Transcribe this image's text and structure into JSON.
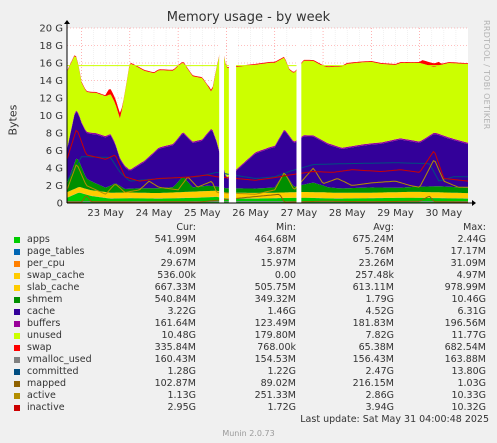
{
  "chart_data": {
    "type": "area",
    "title": "Memory usage - by week",
    "ylabel": "Bytes",
    "ylim": [
      0,
      20
    ],
    "y_unit": "G",
    "yticks": [
      "0",
      "2 G",
      "4 G",
      "6 G",
      "8 G",
      "10 G",
      "12 G",
      "14 G",
      "16 G",
      "18 G",
      "20 G"
    ],
    "xlim": [
      22.7,
      31.0
    ],
    "xticks": [
      {
        "label": "23 May",
        "day": 23
      },
      {
        "label": "24 May",
        "day": 24
      },
      {
        "label": "25 May",
        "day": 25
      },
      {
        "label": "26 May",
        "day": 26
      },
      {
        "label": "27 May",
        "day": 27
      },
      {
        "label": "28 May",
        "day": 28
      },
      {
        "label": "29 May",
        "day": 29
      },
      {
        "label": "30 May",
        "day": 30
      }
    ],
    "grid": true,
    "gaps": [
      [
        25.85,
        25.95
      ],
      [
        26.05,
        26.2
      ],
      [
        27.45,
        27.55
      ]
    ],
    "total_memory_g": 15.7,
    "series": [
      {
        "name": "apps",
        "color": "#00cc00",
        "points": [
          [
            22.7,
            0.6
          ],
          [
            22.95,
            1.2
          ],
          [
            23.2,
            0.8
          ],
          [
            23.6,
            0.5
          ],
          [
            24.0,
            0.55
          ],
          [
            24.6,
            0.5
          ],
          [
            25.4,
            0.6
          ],
          [
            25.8,
            0.7
          ],
          [
            26.0,
            0.5
          ],
          [
            26.6,
            0.5
          ],
          [
            27.0,
            0.55
          ],
          [
            27.6,
            0.6
          ],
          [
            28.3,
            0.5
          ],
          [
            29.0,
            0.55
          ],
          [
            29.8,
            0.6
          ],
          [
            30.5,
            0.55
          ],
          [
            31.0,
            0.5
          ]
        ]
      },
      {
        "name": "page_tables",
        "color": "#0066b3",
        "points": [
          [
            22.7,
            0.01
          ],
          [
            31.0,
            0.01
          ]
        ]
      },
      {
        "name": "per_cpu",
        "color": "#ff8000",
        "points": [
          [
            22.7,
            0.02
          ],
          [
            31.0,
            0.02
          ]
        ]
      },
      {
        "name": "slab_cache",
        "color": "#ffcc00",
        "points": [
          [
            22.7,
            0.6
          ],
          [
            23.5,
            0.65
          ],
          [
            24.5,
            0.6
          ],
          [
            25.5,
            0.7
          ],
          [
            26.0,
            0.65
          ],
          [
            27.0,
            0.6
          ],
          [
            28.0,
            0.65
          ],
          [
            29.0,
            0.6
          ],
          [
            30.0,
            0.65
          ],
          [
            31.0,
            0.6
          ]
        ]
      },
      {
        "name": "shmem",
        "color": "#008f00",
        "points": [
          [
            22.7,
            1.0
          ],
          [
            22.9,
            3.5
          ],
          [
            23.1,
            1.2
          ],
          [
            23.5,
            0.5
          ],
          [
            23.7,
            1.1
          ],
          [
            23.9,
            0.4
          ],
          [
            24.2,
            0.5
          ],
          [
            24.9,
            0.6
          ],
          [
            25.1,
            1.8
          ],
          [
            25.3,
            0.5
          ],
          [
            25.6,
            0.6
          ],
          [
            25.8,
            0.5
          ],
          [
            26.6,
            0.5
          ],
          [
            27.0,
            0.6
          ],
          [
            27.2,
            2.3
          ],
          [
            27.4,
            0.6
          ],
          [
            27.8,
            1.1
          ],
          [
            28.1,
            0.6
          ],
          [
            28.4,
            0.5
          ],
          [
            29.0,
            0.6
          ],
          [
            29.6,
            0.5
          ],
          [
            30.0,
            0.6
          ],
          [
            30.4,
            0.7
          ],
          [
            31.0,
            0.6
          ]
        ]
      },
      {
        "name": "cache",
        "color": "#330099",
        "points": [
          [
            22.7,
            3.8
          ],
          [
            22.85,
            5.5
          ],
          [
            23.0,
            5.0
          ],
          [
            23.3,
            5.6
          ],
          [
            23.6,
            5.8
          ],
          [
            23.8,
            3.0
          ],
          [
            24.0,
            2.0
          ],
          [
            24.3,
            3.0
          ],
          [
            24.6,
            4.5
          ],
          [
            24.9,
            4.8
          ],
          [
            25.2,
            5.0
          ],
          [
            25.5,
            5.2
          ],
          [
            25.7,
            6.5
          ],
          [
            25.8,
            5.0
          ],
          [
            26.0,
            1.0
          ],
          [
            26.6,
            4.0
          ],
          [
            26.9,
            4.5
          ],
          [
            27.2,
            4.8
          ],
          [
            27.4,
            5.0
          ],
          [
            27.6,
            5.5
          ],
          [
            28.0,
            5.0
          ],
          [
            28.4,
            4.5
          ],
          [
            28.8,
            4.8
          ],
          [
            29.2,
            5.0
          ],
          [
            29.6,
            5.5
          ],
          [
            30.0,
            5.0
          ],
          [
            30.3,
            6.0
          ],
          [
            30.6,
            5.5
          ],
          [
            31.0,
            5.0
          ]
        ]
      },
      {
        "name": "buffers",
        "color": "#990099",
        "points": [
          [
            22.7,
            0.15
          ],
          [
            31.0,
            0.15
          ]
        ]
      },
      {
        "name": "unused",
        "color": "#ccff00",
        "points": [
          [
            22.7,
            8.8
          ],
          [
            23.0,
            4.5
          ],
          [
            23.3,
            4.6
          ],
          [
            23.8,
            4.5
          ],
          [
            24.0,
            12.2
          ],
          [
            24.5,
            9.0
          ],
          [
            25.0,
            8.2
          ],
          [
            25.5,
            7.0
          ],
          [
            25.7,
            4.0
          ],
          [
            25.9,
            13.0
          ],
          [
            26.6,
            10.0
          ],
          [
            27.0,
            9.5
          ],
          [
            27.3,
            7.5
          ],
          [
            27.6,
            8.5
          ],
          [
            28.0,
            8.5
          ],
          [
            28.5,
            9.5
          ],
          [
            29.0,
            9.3
          ],
          [
            29.5,
            8.5
          ],
          [
            30.0,
            9.0
          ],
          [
            30.3,
            7.5
          ],
          [
            30.6,
            8.5
          ],
          [
            31.0,
            9.0
          ]
        ]
      },
      {
        "name": "swap",
        "color": "#ff0000",
        "points": [
          [
            22.7,
            0.1
          ],
          [
            23.5,
            0.1
          ],
          [
            23.55,
            0.6
          ],
          [
            23.8,
            0.6
          ],
          [
            23.85,
            0.1
          ],
          [
            25.6,
            0.1
          ],
          [
            25.65,
            0.2
          ],
          [
            25.8,
            0.1
          ],
          [
            30.0,
            0.1
          ],
          [
            30.05,
            0.4
          ],
          [
            30.4,
            0.4
          ],
          [
            30.45,
            0.1
          ],
          [
            31.0,
            0.1
          ]
        ]
      },
      {
        "name": "vmalloc_used",
        "color": "#808080",
        "points": [
          [
            22.7,
            0.16
          ],
          [
            31.0,
            0.16
          ]
        ]
      },
      {
        "name": "committed",
        "color": "#004d80",
        "points": [
          [
            22.7,
            2.5
          ],
          [
            23.0,
            5.3
          ],
          [
            23.6,
            5.2
          ],
          [
            23.8,
            3.5
          ],
          [
            24.0,
            2.5
          ],
          [
            24.4,
            2.7
          ],
          [
            25.0,
            2.9
          ],
          [
            25.4,
            3.0
          ],
          [
            25.8,
            3.5
          ],
          [
            26.6,
            2.8
          ],
          [
            27.0,
            3.0
          ],
          [
            27.3,
            3.6
          ],
          [
            27.8,
            4.4
          ],
          [
            28.5,
            4.5
          ],
          [
            29.5,
            4.6
          ],
          [
            30.2,
            4.5
          ],
          [
            30.4,
            2.5
          ],
          [
            30.7,
            3.0
          ],
          [
            31.0,
            3.0
          ]
        ]
      },
      {
        "name": "mapped",
        "color": "#8f6200",
        "points": [
          [
            22.7,
            0.1
          ],
          [
            23.0,
            0.1
          ],
          [
            23.1,
            0.9
          ],
          [
            23.2,
            0.15
          ],
          [
            24.2,
            0.1
          ],
          [
            25.0,
            0.15
          ],
          [
            25.4,
            0.1
          ],
          [
            27.1,
            1.0
          ],
          [
            27.2,
            0.1
          ],
          [
            28.0,
            0.2
          ],
          [
            29.0,
            0.15
          ],
          [
            30.0,
            0.2
          ],
          [
            30.2,
            0.8
          ],
          [
            30.3,
            0.15
          ],
          [
            31.0,
            0.1
          ]
        ]
      },
      {
        "name": "active",
        "color": "#b38f00",
        "points": [
          [
            22.7,
            1.5
          ],
          [
            22.9,
            4.5
          ],
          [
            23.1,
            2.0
          ],
          [
            23.5,
            1.0
          ],
          [
            23.7,
            2.2
          ],
          [
            23.9,
            1.2
          ],
          [
            24.2,
            1.5
          ],
          [
            24.4,
            2.5
          ],
          [
            24.6,
            1.8
          ],
          [
            25.0,
            1.5
          ],
          [
            25.2,
            3.0
          ],
          [
            25.4,
            1.8
          ],
          [
            25.7,
            2.5
          ],
          [
            25.8,
            1.2
          ],
          [
            26.6,
            1.0
          ],
          [
            27.0,
            1.5
          ],
          [
            27.2,
            3.5
          ],
          [
            27.4,
            1.5
          ],
          [
            27.8,
            4.0
          ],
          [
            28.0,
            2.2
          ],
          [
            28.3,
            2.8
          ],
          [
            28.6,
            2.0
          ],
          [
            29.0,
            2.3
          ],
          [
            29.5,
            2.5
          ],
          [
            29.8,
            2.0
          ],
          [
            30.0,
            1.8
          ],
          [
            30.3,
            5.0
          ],
          [
            30.5,
            2.5
          ],
          [
            30.8,
            1.8
          ],
          [
            31.0,
            1.8
          ]
        ]
      },
      {
        "name": "inactive",
        "color": "#cc0000",
        "points": [
          [
            22.7,
            5.0
          ],
          [
            22.9,
            8.5
          ],
          [
            23.1,
            5.5
          ],
          [
            23.5,
            5.0
          ],
          [
            23.7,
            5.5
          ],
          [
            23.9,
            3.0
          ],
          [
            24.2,
            2.5
          ],
          [
            24.6,
            2.8
          ],
          [
            25.0,
            2.9
          ],
          [
            25.3,
            3.0
          ],
          [
            25.6,
            3.2
          ],
          [
            25.8,
            3.0
          ],
          [
            26.6,
            2.6
          ],
          [
            27.0,
            2.9
          ],
          [
            27.3,
            3.2
          ],
          [
            27.8,
            3.6
          ],
          [
            28.2,
            3.5
          ],
          [
            28.6,
            3.8
          ],
          [
            29.2,
            3.6
          ],
          [
            29.6,
            3.8
          ],
          [
            30.0,
            3.5
          ],
          [
            30.3,
            6.0
          ],
          [
            30.5,
            2.8
          ],
          [
            31.0,
            2.5
          ]
        ]
      }
    ]
  },
  "legend": {
    "headers": {
      "cur": "Cur:",
      "min": "Min:",
      "avg": "Avg:",
      "max": "Max:"
    },
    "rows": [
      {
        "name": "apps",
        "color": "#00cc00",
        "cur": "541.99M",
        "min": "464.68M",
        "avg": "675.24M",
        "max": "2.44G"
      },
      {
        "name": "page_tables",
        "color": "#0066b3",
        "cur": "4.09M",
        "min": "3.87M",
        "avg": "5.76M",
        "max": "17.17M"
      },
      {
        "name": "per_cpu",
        "color": "#ff8000",
        "cur": "29.67M",
        "min": "15.97M",
        "avg": "23.26M",
        "max": "31.09M"
      },
      {
        "name": "swap_cache",
        "color": "#ffcc00",
        "cur": "536.00k",
        "min": "0.00",
        "avg": "257.48k",
        "max": "4.97M"
      },
      {
        "name": "slab_cache",
        "color": "#ffcc00",
        "cur": "667.33M",
        "min": "505.75M",
        "avg": "613.11M",
        "max": "978.99M"
      },
      {
        "name": "shmem",
        "color": "#008f00",
        "cur": "540.84M",
        "min": "349.32M",
        "avg": "1.79G",
        "max": "10.46G"
      },
      {
        "name": "cache",
        "color": "#330099",
        "cur": "3.22G",
        "min": "1.46G",
        "avg": "4.52G",
        "max": "6.31G"
      },
      {
        "name": "buffers",
        "color": "#990099",
        "cur": "161.64M",
        "min": "123.49M",
        "avg": "181.83M",
        "max": "196.56M"
      },
      {
        "name": "unused",
        "color": "#ccff00",
        "cur": "10.48G",
        "min": "179.80M",
        "avg": "7.82G",
        "max": "11.77G"
      },
      {
        "name": "swap",
        "color": "#ff0000",
        "cur": "335.84M",
        "min": "768.00k",
        "avg": "65.38M",
        "max": "682.54M"
      },
      {
        "name": "vmalloc_used",
        "color": "#808080",
        "cur": "160.43M",
        "min": "154.53M",
        "avg": "156.43M",
        "max": "163.88M"
      },
      {
        "name": "committed",
        "color": "#004d80",
        "cur": "1.28G",
        "min": "1.22G",
        "avg": "2.47G",
        "max": "13.80G"
      },
      {
        "name": "mapped",
        "color": "#8f6200",
        "cur": "102.87M",
        "min": "89.02M",
        "avg": "216.15M",
        "max": "1.03G"
      },
      {
        "name": "active",
        "color": "#b38f00",
        "cur": "1.13G",
        "min": "251.33M",
        "avg": "2.86G",
        "max": "10.33G"
      },
      {
        "name": "inactive",
        "color": "#cc0000",
        "cur": "2.95G",
        "min": "1.72G",
        "avg": "3.94G",
        "max": "10.32G"
      }
    ]
  },
  "last_update": "Last update: Sat May 31 04:00:48 2025",
  "footer": "Munin 2.0.73",
  "watermark": "RRDTOOL / TOBI OETIKER"
}
